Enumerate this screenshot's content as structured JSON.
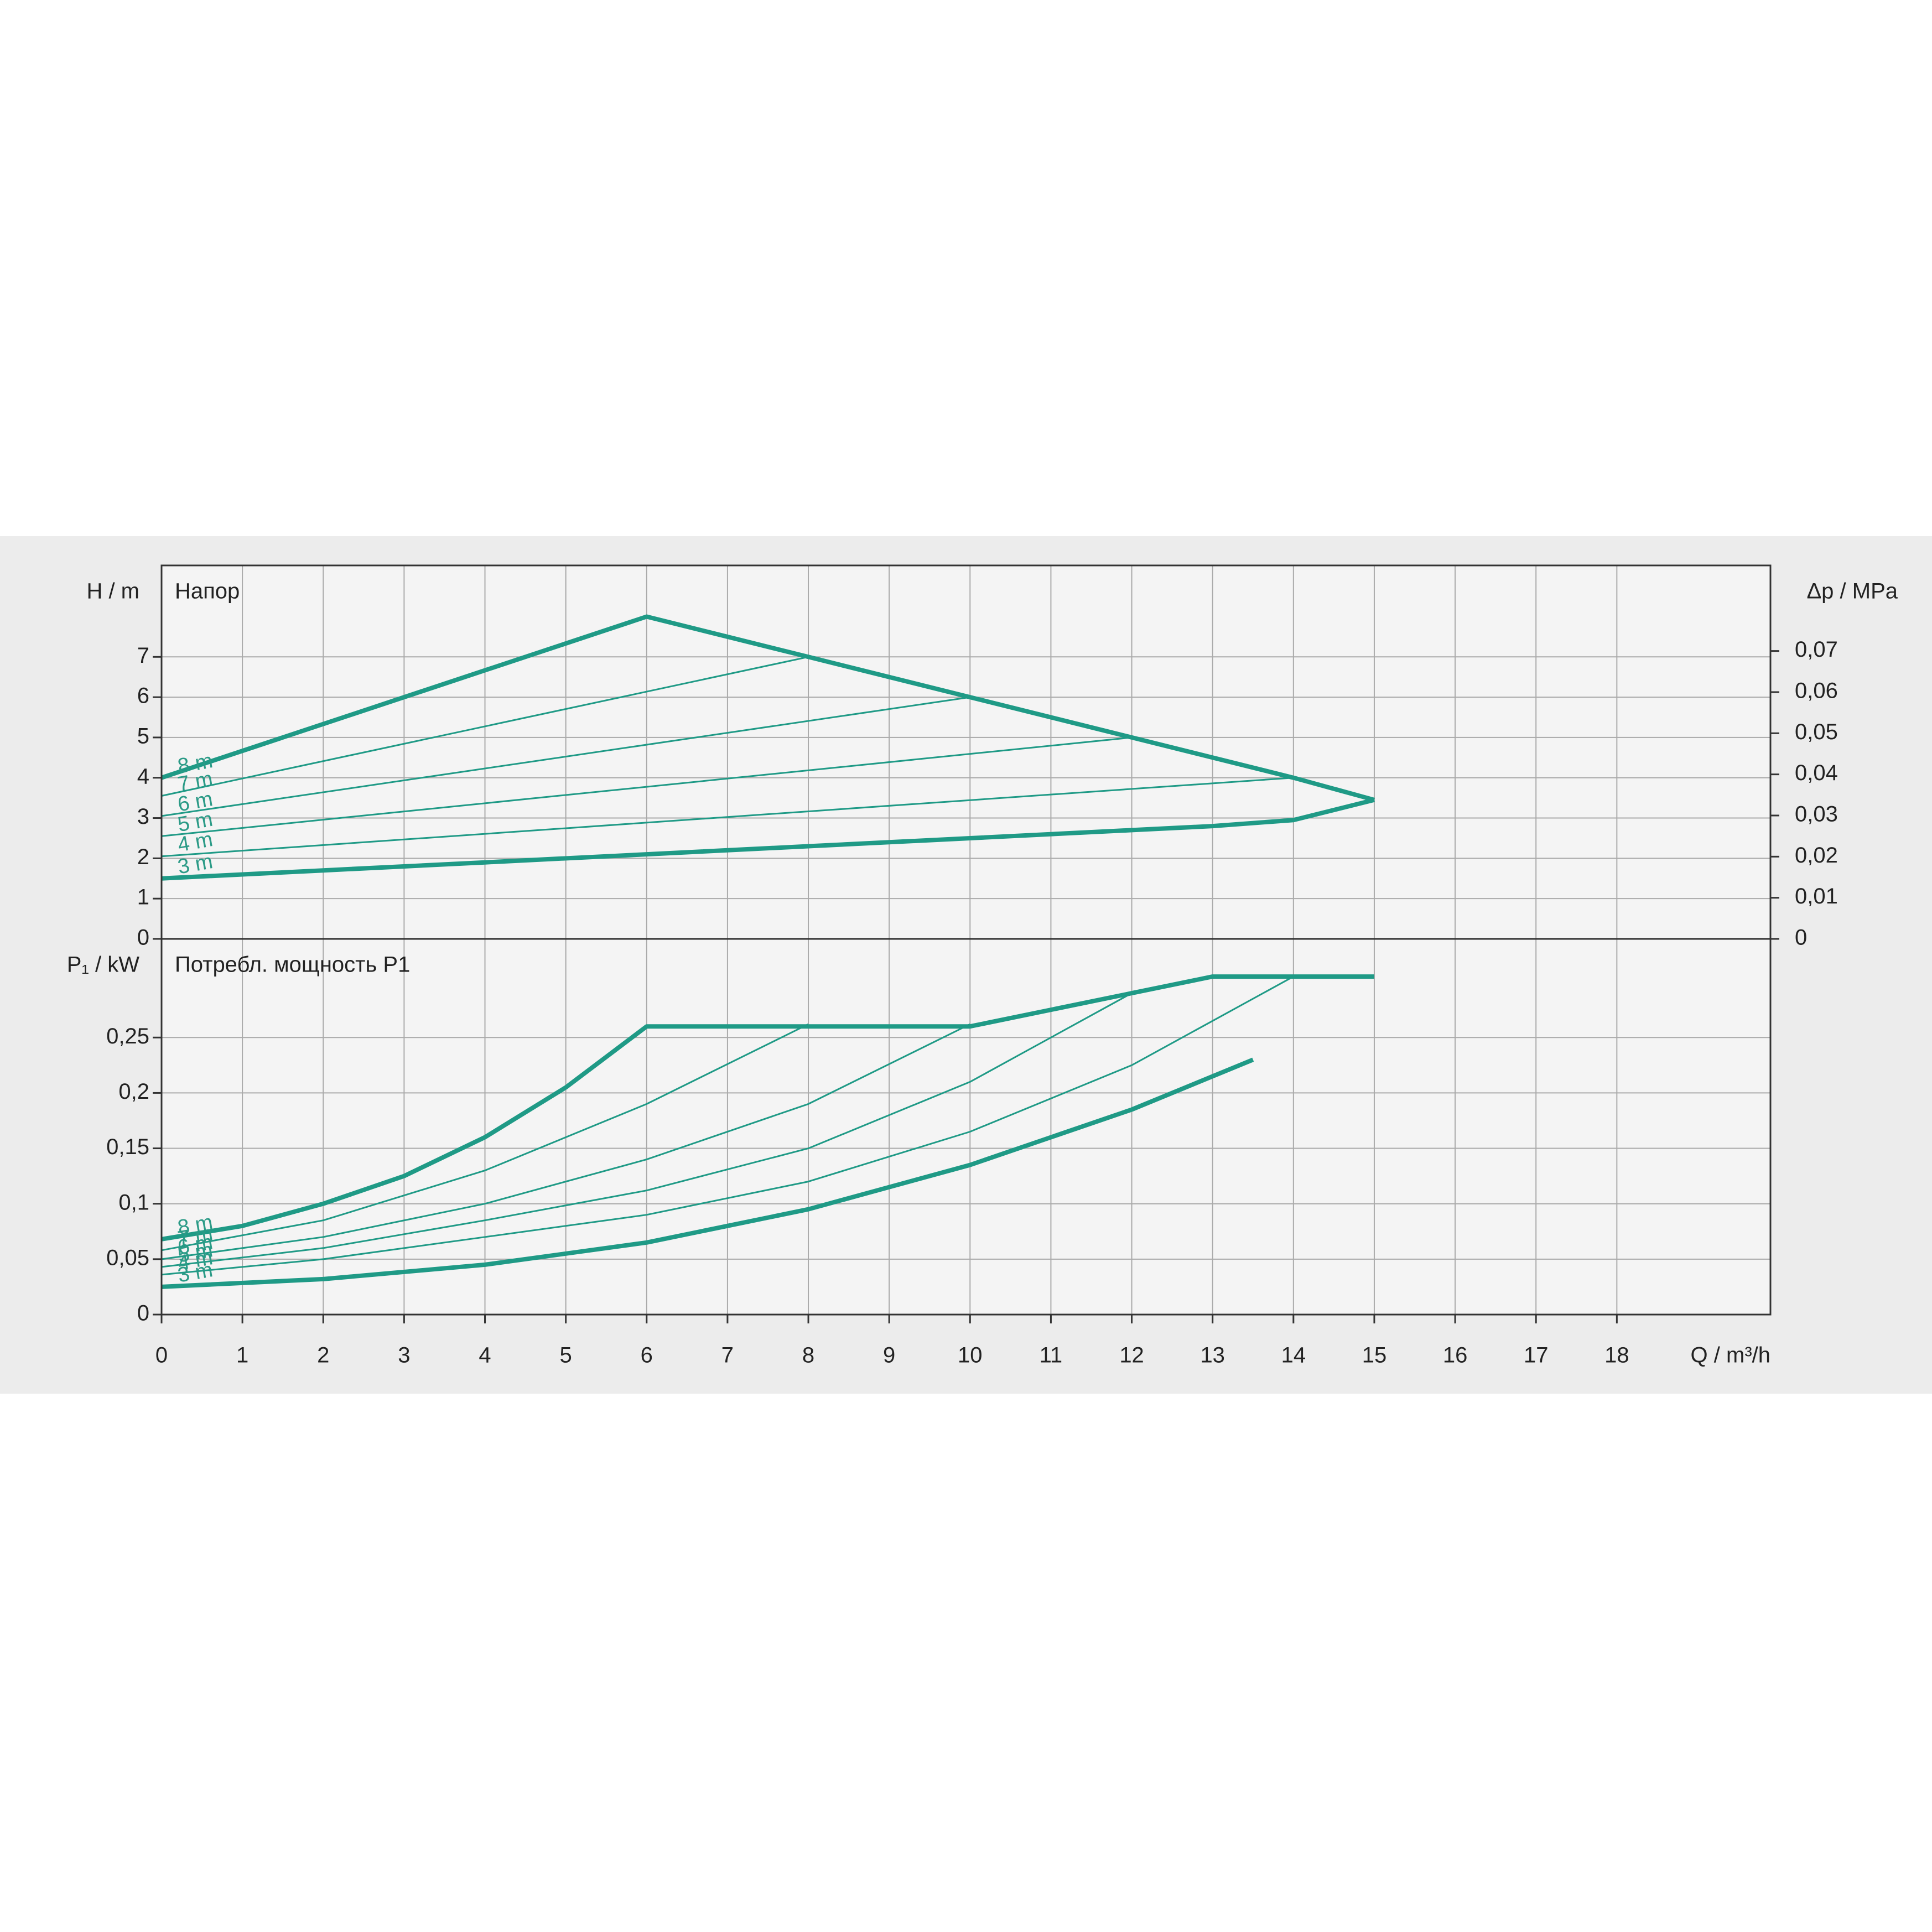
{
  "chart_data": [
    {
      "type": "line",
      "title": "Напор",
      "y_label": "H / m",
      "y2_label": "Δp / MPa",
      "xlim": [
        0,
        19.9
      ],
      "xticks": [
        0,
        1,
        2,
        3,
        4,
        5,
        6,
        7,
        8,
        9,
        10,
        11,
        12,
        13,
        14,
        15,
        16,
        17,
        18
      ],
      "ylim": [
        0,
        9.27
      ],
      "yticks": [
        0,
        1,
        2,
        3,
        4,
        5,
        6,
        7
      ],
      "y2lim": [
        0,
        0.0908
      ],
      "y2ticks": [
        0,
        {
          "value": 0.01,
          "label": "0,01"
        },
        {
          "value": 0.02,
          "label": "0,02"
        },
        {
          "value": 0.03,
          "label": "0,03"
        },
        {
          "value": 0.04,
          "label": "0,04"
        },
        {
          "value": 0.05,
          "label": "0,05"
        },
        {
          "value": 0.06,
          "label": "0,06"
        },
        {
          "value": 0.07,
          "label": "0,07"
        }
      ],
      "grid": true,
      "color": "#1f9a86",
      "series": [
        {
          "name": "8 m",
          "x": [
            0,
            6,
            8,
            10,
            12,
            14,
            15
          ],
          "values": [
            4.0,
            8.0,
            7.0,
            6.0,
            5.0,
            4.0,
            3.45
          ]
        },
        {
          "name": "7 m",
          "x": [
            0,
            8
          ],
          "values": [
            3.55,
            7.0
          ]
        },
        {
          "name": "6 m",
          "x": [
            0,
            10
          ],
          "values": [
            3.05,
            6.0
          ]
        },
        {
          "name": "5 m",
          "x": [
            0,
            12
          ],
          "values": [
            2.55,
            5.0
          ]
        },
        {
          "name": "4 m",
          "x": [
            0,
            14
          ],
          "values": [
            2.05,
            4.0
          ]
        },
        {
          "name": "3 m",
          "x": [
            0,
            2,
            4,
            6,
            8,
            10,
            12,
            13,
            14,
            15
          ],
          "values": [
            1.5,
            1.7,
            1.9,
            2.1,
            2.3,
            2.5,
            2.7,
            2.8,
            2.95,
            3.45
          ]
        }
      ]
    },
    {
      "type": "line",
      "title": "Потребл. мощность P1",
      "y_label": "P₁ / kW",
      "x_label": "Q / m³/h",
      "xlim": [
        0,
        19.9
      ],
      "xticks": [
        0,
        1,
        2,
        3,
        4,
        5,
        6,
        7,
        8,
        9,
        10,
        11,
        12,
        13,
        14,
        15,
        16,
        17,
        18
      ],
      "ylim": [
        0,
        0.339
      ],
      "yticks": [
        0,
        {
          "value": 0.05,
          "label": "0,05"
        },
        {
          "value": 0.1,
          "label": "0,1"
        },
        {
          "value": 0.15,
          "label": "0,15"
        },
        {
          "value": 0.2,
          "label": "0,2"
        },
        {
          "value": 0.25,
          "label": "0,25"
        }
      ],
      "grid": true,
      "color": "#1f9a86",
      "series": [
        {
          "name": "8 m",
          "x": [
            0,
            1,
            2,
            3,
            4,
            5,
            6,
            8,
            10,
            12,
            13,
            15
          ],
          "values": [
            0.068,
            0.08,
            0.1,
            0.125,
            0.16,
            0.205,
            0.26,
            0.26,
            0.26,
            0.29,
            0.305,
            0.305
          ]
        },
        {
          "name": "7 m",
          "x": [
            0,
            2,
            4,
            6,
            8
          ],
          "values": [
            0.058,
            0.085,
            0.13,
            0.19,
            0.262
          ]
        },
        {
          "name": "6 m",
          "x": [
            0,
            2,
            4,
            6,
            8,
            10
          ],
          "values": [
            0.05,
            0.07,
            0.1,
            0.14,
            0.19,
            0.262
          ]
        },
        {
          "name": "5 m",
          "x": [
            0,
            2,
            4,
            6,
            8,
            10,
            12
          ],
          "values": [
            0.043,
            0.06,
            0.085,
            0.112,
            0.15,
            0.21,
            0.29
          ]
        },
        {
          "name": "4 m",
          "x": [
            0,
            2,
            4,
            6,
            8,
            10,
            12,
            14
          ],
          "values": [
            0.036,
            0.05,
            0.07,
            0.09,
            0.12,
            0.165,
            0.225,
            0.305
          ]
        },
        {
          "name": "3 m",
          "x": [
            0,
            2,
            4,
            6,
            8,
            10,
            12,
            13.5
          ],
          "values": [
            0.025,
            0.032,
            0.045,
            0.065,
            0.095,
            0.135,
            0.185,
            0.23
          ]
        }
      ]
    }
  ]
}
